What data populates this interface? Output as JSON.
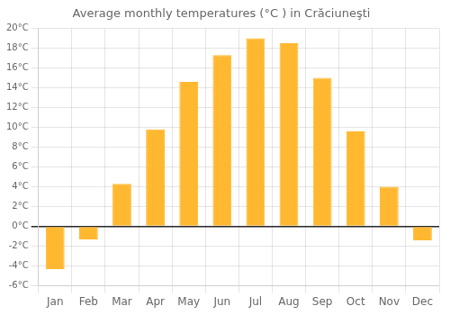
{
  "chart_data": {
    "type": "bar",
    "title": "Average monthly temperatures (°C ) in Crăciuneşti",
    "categories": [
      "Jan",
      "Feb",
      "Mar",
      "Apr",
      "May",
      "Jun",
      "Jul",
      "Aug",
      "Sep",
      "Oct",
      "Nov",
      "Dec"
    ],
    "values": [
      -4.3,
      -1.3,
      4.3,
      9.8,
      14.6,
      17.3,
      19.0,
      18.5,
      15.0,
      9.6,
      4.0,
      -1.4
    ],
    "color": "#FFB830",
    "ylim": [
      -6,
      20
    ],
    "yticks": [
      {
        "value": -6,
        "label": "-6°C"
      },
      {
        "value": -4,
        "label": "-4°C"
      },
      {
        "value": -2,
        "label": "-2°C"
      },
      {
        "value": 0,
        "label": "0°C"
      },
      {
        "value": 2,
        "label": "2°C"
      },
      {
        "value": 4,
        "label": "4°C"
      },
      {
        "value": 6,
        "label": "6°C"
      },
      {
        "value": 8,
        "label": "8°C"
      },
      {
        "value": 10,
        "label": "10°C"
      },
      {
        "value": 12,
        "label": "12°C"
      },
      {
        "value": 14,
        "label": "14°C"
      },
      {
        "value": 16,
        "label": "16°C"
      },
      {
        "value": 18,
        "label": "18°C"
      },
      {
        "value": 20,
        "label": "20°C"
      }
    ],
    "grid": true
  }
}
